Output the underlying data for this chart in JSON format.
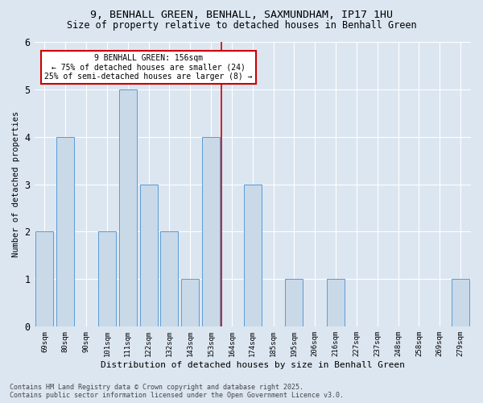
{
  "title": "9, BENHALL GREEN, BENHALL, SAXMUNDHAM, IP17 1HU",
  "subtitle": "Size of property relative to detached houses in Benhall Green",
  "xlabel": "Distribution of detached houses by size in Benhall Green",
  "ylabel": "Number of detached properties",
  "categories": [
    "69sqm",
    "80sqm",
    "90sqm",
    "101sqm",
    "111sqm",
    "122sqm",
    "132sqm",
    "143sqm",
    "153sqm",
    "164sqm",
    "174sqm",
    "185sqm",
    "195sqm",
    "206sqm",
    "216sqm",
    "227sqm",
    "237sqm",
    "248sqm",
    "258sqm",
    "269sqm",
    "279sqm"
  ],
  "values": [
    2,
    4,
    0,
    2,
    5,
    3,
    2,
    1,
    4,
    0,
    3,
    0,
    1,
    0,
    1,
    0,
    0,
    0,
    0,
    0,
    1
  ],
  "bar_color": "#c9d9e8",
  "bar_edge_color": "#5b9bd5",
  "subject_line_index": 8.5,
  "subject_label": "9 BENHALL GREEN: 156sqm",
  "annotation_line1": "← 75% of detached houses are smaller (24)",
  "annotation_line2": "25% of semi-detached houses are larger (8) →",
  "annotation_box_color": "#ffffff",
  "annotation_box_edge": "#cc0000",
  "vline_color": "#cc0000",
  "ylim": [
    0,
    6
  ],
  "yticks": [
    0,
    1,
    2,
    3,
    4,
    5,
    6
  ],
  "bg_color": "#dce6f1",
  "grid_color": "#ffffff",
  "footer_line1": "Contains HM Land Registry data © Crown copyright and database right 2025.",
  "footer_line2": "Contains public sector information licensed under the Open Government Licence v3.0."
}
